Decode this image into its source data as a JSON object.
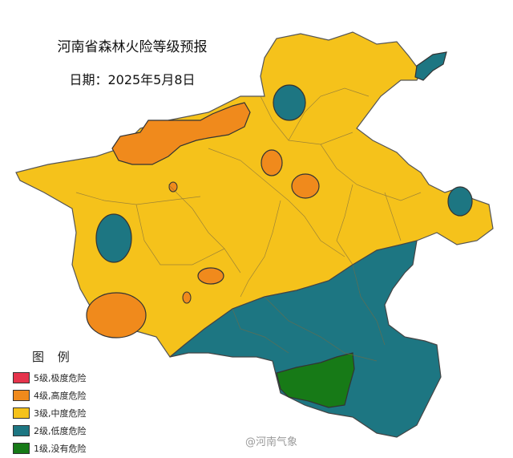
{
  "title": "河南省森林火险等级预报",
  "date_line": "日期：2025年5月8日",
  "legend": {
    "title": "图 例",
    "items": [
      {
        "label": "5级,极度危险",
        "color": "#e5344c"
      },
      {
        "label": "4级,高度危险",
        "color": "#f08a1c"
      },
      {
        "label": "3级,中度危险",
        "color": "#f5c21b"
      },
      {
        "label": "2级,低度危险",
        "color": "#1d7682"
      },
      {
        "label": "1级,没有危险",
        "color": "#177a17"
      }
    ]
  },
  "watermark": "@河南气象",
  "colors": {
    "level3": "#f5c21b",
    "level4": "#f08a1c",
    "level2": "#1d7682",
    "level1": "#177a17"
  }
}
